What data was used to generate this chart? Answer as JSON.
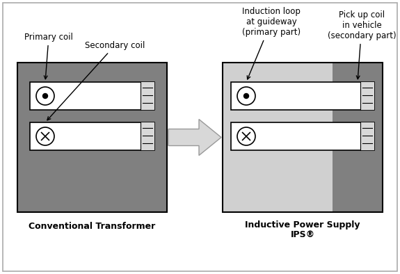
{
  "bg_color": "#ffffff",
  "border_color": "#aaaaaa",
  "dark_gray": "#808080",
  "light_gray": "#c8c8c8",
  "white": "#ffffff",
  "black": "#000000",
  "tick_gray": "#e0e0e0",
  "arrow_fill": "#d0d0d0",
  "arrow_edge": "#999999",
  "left_box_label": "Conventional Transformer",
  "right_box_label_line1": "Inductive Power Supply",
  "right_box_label_line2": "IPS®",
  "label_primary": "Primary coil",
  "label_secondary": "Secondary coil",
  "label_induction": "Induction loop\nat guideway\n(primary part)",
  "label_pickup": "Pick up coil\nin vehicle\n(secondary part)",
  "fig_w": 5.75,
  "fig_h": 3.94,
  "dpi": 100
}
